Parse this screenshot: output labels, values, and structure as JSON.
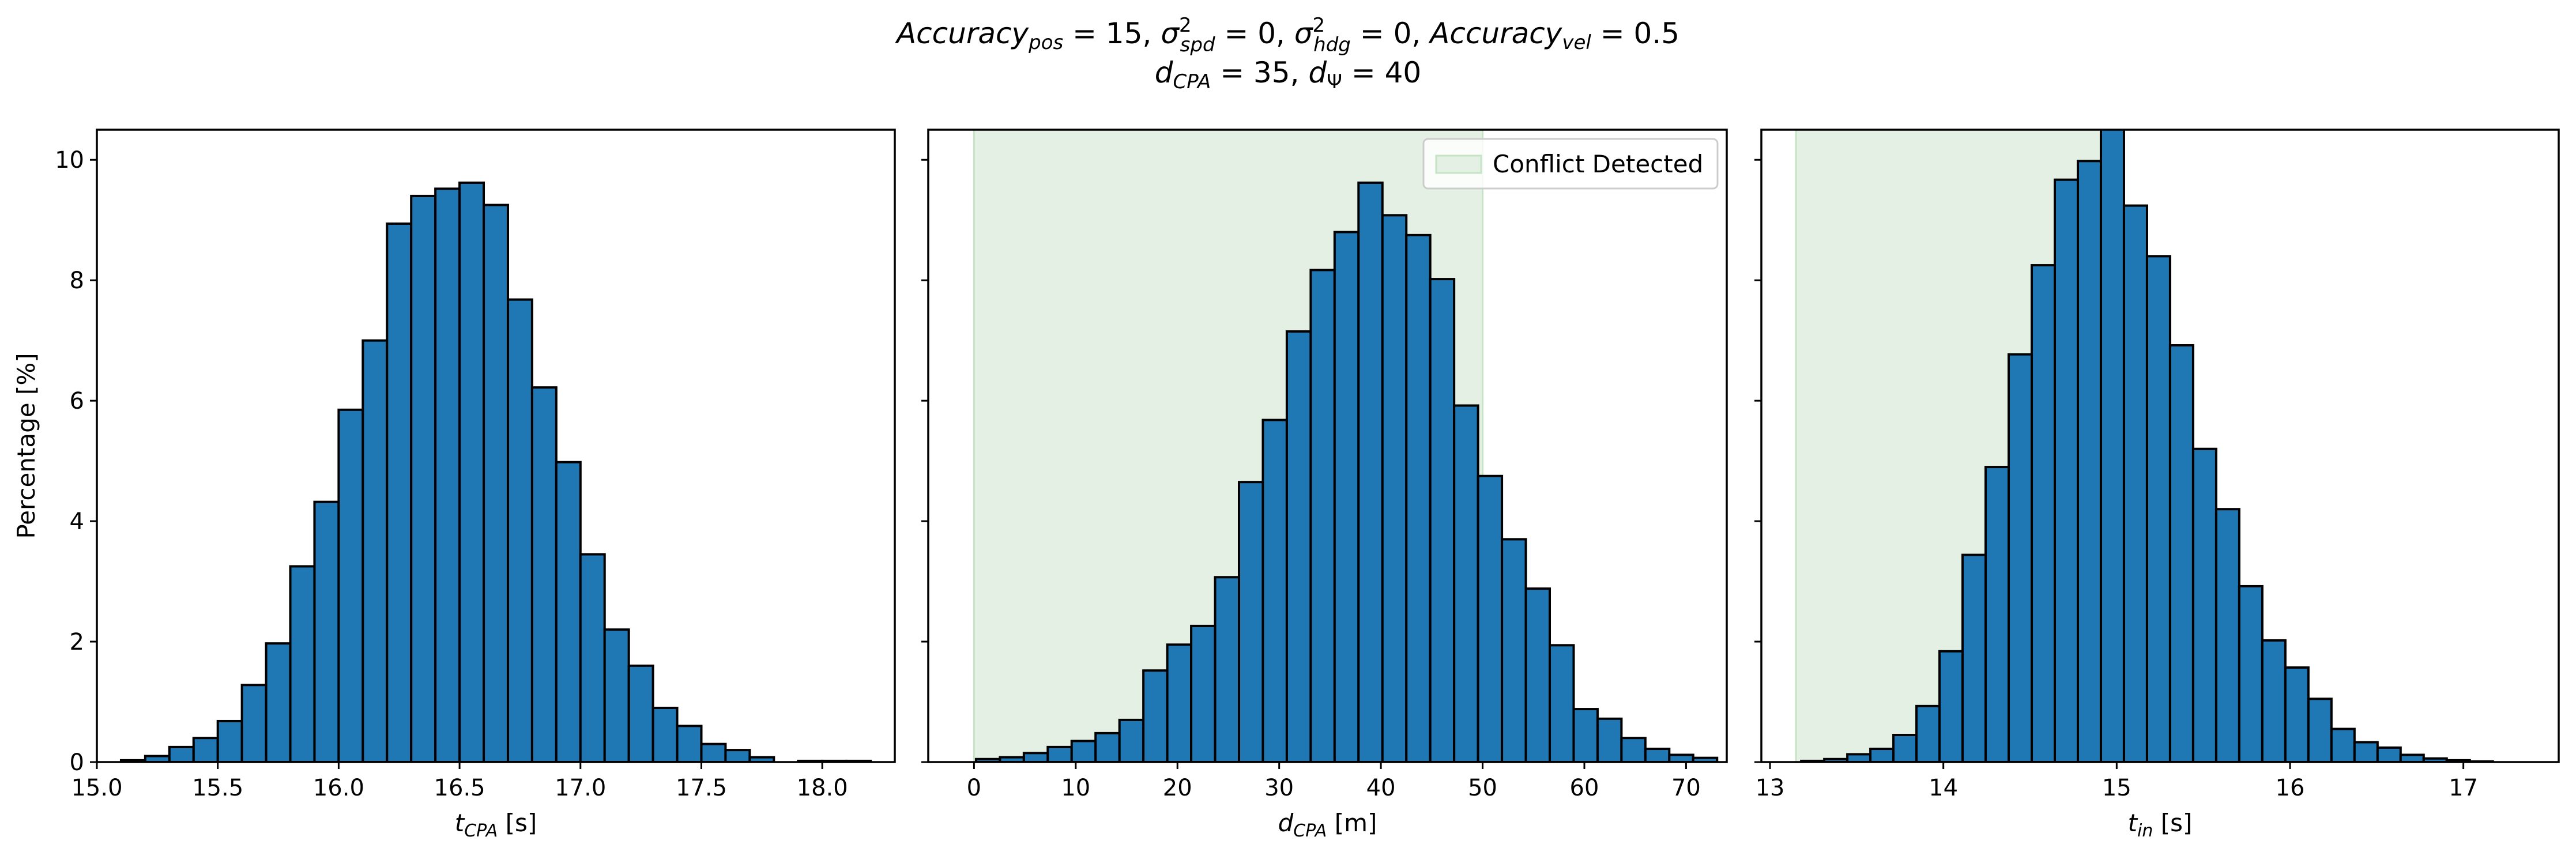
{
  "title": {
    "line1": {
      "t1": "Accuracy",
      "t1sub": "pos",
      "t2": " = 15, ",
      "t3": "σ",
      "t3sup": "2",
      "t3sub": "spd",
      "t4": " = 0, ",
      "t5": "σ",
      "t5sup": "2",
      "t5sub": "hdg",
      "t6": " = 0, ",
      "t7": "Accuracy",
      "t7sub": "vel",
      "t8": " = 0.5"
    },
    "line2": {
      "t1": "d",
      "t1sub": "CPA",
      "t2": " = 35, ",
      "t3": "d",
      "t3sub": "Ψ",
      "t4": " = 40"
    }
  },
  "colors": {
    "bar": "#1f77b4",
    "bar_edge": "#000000",
    "conflict_region": "#e4f0e4",
    "conflict_edge": "#c6e3c6"
  },
  "chart_data": [
    {
      "type": "bar",
      "panel": "left",
      "xlabel": {
        "var": "t",
        "sub": "CPA",
        "unit": " [s]"
      },
      "ylabel": "Percentage [%]",
      "xlim": [
        15.0,
        18.3
      ],
      "ylim": [
        0,
        10.5
      ],
      "xticks": [
        15.0,
        15.5,
        16.0,
        16.5,
        17.0,
        17.5,
        18.0
      ],
      "xtick_labels": [
        "15.0",
        "15.5",
        "16.0",
        "16.5",
        "17.0",
        "17.5",
        "18.0"
      ],
      "yticks": [
        0,
        2,
        4,
        6,
        8,
        10
      ],
      "ytick_labels": [
        "0",
        "2",
        "4",
        "6",
        "8",
        "10"
      ],
      "bin_start": 15.1,
      "bin_width": 0.1,
      "values": [
        0.03,
        0.1,
        0.25,
        0.4,
        0.68,
        1.28,
        1.97,
        3.25,
        4.32,
        5.85,
        7.0,
        8.94,
        9.4,
        9.52,
        9.62,
        9.25,
        7.68,
        6.22,
        4.98,
        3.45,
        2.2,
        1.6,
        0.9,
        0.6,
        0.3,
        0.2,
        0.08,
        0.0,
        0.02,
        0.02,
        0.02
      ]
    },
    {
      "type": "bar",
      "panel": "middle",
      "xlabel": {
        "var": "d",
        "sub": "CPA",
        "unit": " [m]"
      },
      "xlim": [
        -4.5,
        74
      ],
      "ylim": [
        0,
        10.5
      ],
      "xticks": [
        0,
        10,
        20,
        30,
        40,
        50,
        60,
        70
      ],
      "xtick_labels": [
        "0",
        "10",
        "20",
        "30",
        "40",
        "50",
        "60",
        "70"
      ],
      "yticks": [
        0,
        2,
        4,
        6,
        8,
        10
      ],
      "conflict_region": [
        0,
        50
      ],
      "legend": {
        "label": "Conflict Detected",
        "position": "upper right"
      },
      "bin_start": 0.2,
      "bin_width": 2.35,
      "values": [
        0.05,
        0.08,
        0.15,
        0.25,
        0.35,
        0.48,
        0.7,
        1.52,
        1.95,
        2.26,
        3.07,
        4.65,
        5.68,
        7.15,
        8.17,
        8.8,
        9.62,
        9.08,
        8.75,
        8.02,
        5.92,
        4.75,
        3.7,
        2.88,
        1.94,
        0.88,
        0.72,
        0.4,
        0.22,
        0.12,
        0.07
      ]
    },
    {
      "type": "bar",
      "panel": "right",
      "xlabel": {
        "var": "t",
        "sub": "in",
        "unit": " [s]"
      },
      "xlim": [
        12.95,
        17.55
      ],
      "ylim": [
        0,
        10.5
      ],
      "xticks": [
        13,
        14,
        15,
        16,
        17
      ],
      "xtick_labels": [
        "13",
        "14",
        "15",
        "16",
        "17"
      ],
      "yticks": [
        0,
        2,
        4,
        6,
        8,
        10
      ],
      "conflict_region": [
        13.15,
        15.0
      ],
      "bin_start": 13.18,
      "bin_width": 0.133,
      "values": [
        0.02,
        0.05,
        0.13,
        0.22,
        0.45,
        0.93,
        1.84,
        3.44,
        4.9,
        6.77,
        8.25,
        9.67,
        9.98,
        10.62,
        9.24,
        8.4,
        6.92,
        5.2,
        4.2,
        2.92,
        2.02,
        1.57,
        1.05,
        0.55,
        0.33,
        0.24,
        0.12,
        0.06,
        0.03,
        0.01
      ]
    }
  ]
}
